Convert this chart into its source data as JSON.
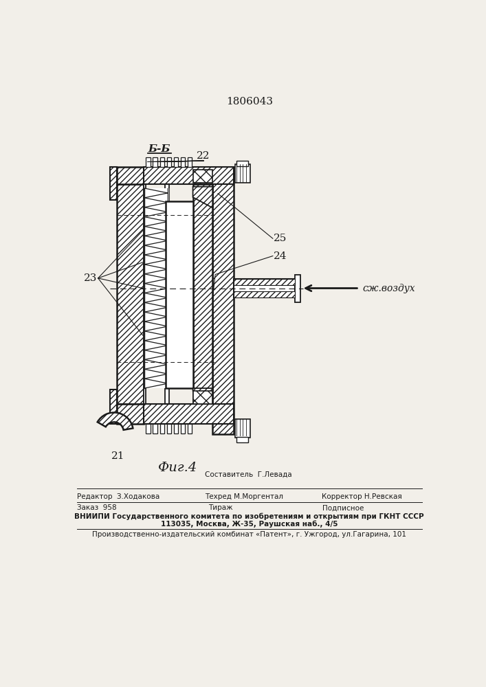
{
  "patent_number": "1806043",
  "figure_label": "Фиг.4",
  "section_label": "Б-Б",
  "air_label": "сж.воздух",
  "label_21": "21",
  "label_22": "22",
  "label_23": "23",
  "label_24": "24",
  "label_25": "25",
  "credit_editor": "Редактор  З.Ходакова",
  "credit_sostavitel": "Составитель  Г.Левада",
  "credit_tehred": "Техред М.Моргентал",
  "credit_korrektor": "Корректор Н.Ревская",
  "credit_zakaz": "Заказ  958",
  "credit_tirazh": "Тираж",
  "credit_podp": "Подписное",
  "credit_vniip1": "ВНИИПИ Государственного комитета по изобретениям и открытиям при ГКНТ СССР",
  "credit_vniip2": "113035, Москва, Ж-35, Раушская наб., 4/5",
  "credit_patent": "Производственно-издательский комбинат «Патент», г. Ужгород, ул.Гагарина, 101",
  "bg_color": "#f2efe9",
  "lc": "#1a1a1a"
}
